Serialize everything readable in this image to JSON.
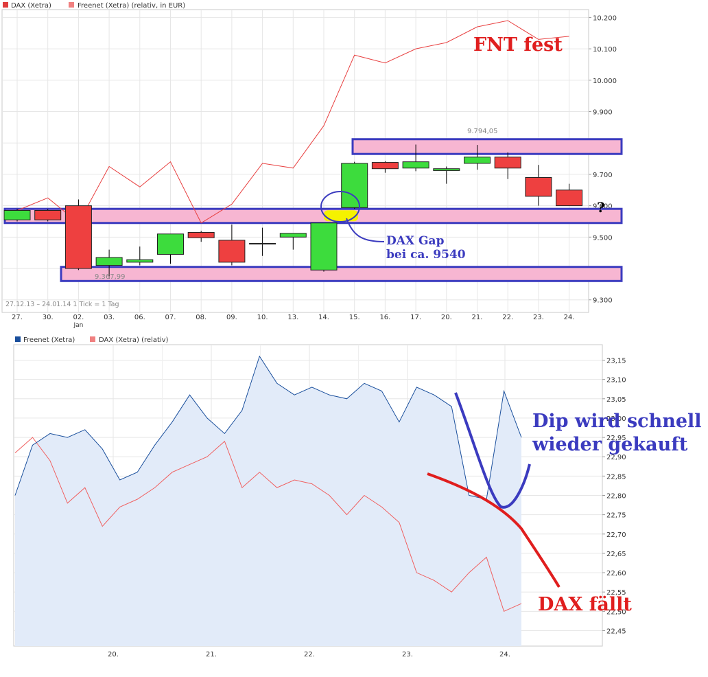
{
  "top_chart": {
    "legend": [
      {
        "label": "DAX (Xetra)",
        "color": "#e03c3c"
      },
      {
        "label": "Freenet (Xetra) (relativ, in EUR)",
        "color": "#f08080"
      }
    ],
    "period_label": "27.12.13 – 24.01.14   1 Tick = 1 Tag",
    "low_label": "9.367,99",
    "high_label": "9.794,05",
    "annotations": {
      "fnt_fest": "FNT fest",
      "gap_line1": "DAX Gap",
      "gap_line2": "bei ca. 9540",
      "question": "?"
    },
    "colors": {
      "up": "#3ddc3d",
      "down": "#ee4040",
      "band_fill": "#f7b6d2",
      "band_stroke": "#3b3bbf",
      "gap_fill": "#f5f200",
      "freenet_line": "#e84040"
    }
  },
  "bottom_chart": {
    "legend": [
      {
        "label": "Freenet (Xetra)",
        "color": "#1a4f9c"
      },
      {
        "label": "DAX (Xetra) (relativ)",
        "color": "#f08080"
      }
    ],
    "annotations": {
      "dip_line1": "Dip wird schnell",
      "dip_line2": "wieder gekauft",
      "dax_faellt": "DAX fällt"
    },
    "colors": {
      "freenet_line": "#1a4f9c",
      "freenet_fill": "#e2ebf9",
      "dax_line": "#f06060",
      "dip_curve": "#3b3bbf",
      "dax_curve": "#e01e1e"
    }
  },
  "chart_data": [
    {
      "type": "candlestick",
      "title": "",
      "x_labels": [
        "27.",
        "30.",
        "02.",
        "03.",
        "06.",
        "07.",
        "08.",
        "09.",
        "10.",
        "13.",
        "14.",
        "15.",
        "16.",
        "17.",
        "20.",
        "21.",
        "22.",
        "23.",
        "24."
      ],
      "x_sublabel": {
        "index": 2,
        "text": "Jan"
      },
      "y_ticks": [
        "10.200",
        "10.100",
        "10.000",
        "9.900",
        "9.800",
        "9.700",
        "9.600",
        "9.500",
        "9.400",
        "9.300"
      ],
      "ylim": [
        9260,
        10225
      ],
      "grid": true,
      "series": [
        {
          "name": "DAX (Xetra)",
          "ohlc": [
            [
              9555,
              9590,
              9550,
              9585
            ],
            [
              9585,
              9590,
              9550,
              9555
            ],
            [
              9600,
              9620,
              9395,
              9400
            ],
            [
              9410,
              9460,
              9368,
              9435
            ],
            [
              9420,
              9470,
              9410,
              9428
            ],
            [
              9445,
              9510,
              9415,
              9510
            ],
            [
              9515,
              9520,
              9485,
              9498
            ],
            [
              9490,
              9540,
              9410,
              9420
            ],
            [
              9480,
              9530,
              9440,
              9480
            ],
            [
              9500,
              9510,
              9460,
              9512
            ],
            [
              9395,
              9545,
              9390,
              9545
            ],
            [
              9594,
              9740,
              9590,
              9735
            ],
            [
              9738,
              9742,
              9705,
              9718
            ],
            [
              9720,
              9795,
              9710,
              9740
            ],
            [
              9712,
              9725,
              9670,
              9718
            ],
            [
              9735,
              9794.05,
              9715,
              9755
            ],
            [
              9755,
              9770,
              9685,
              9720
            ],
            [
              9690,
              9730,
              9600,
              9630
            ],
            [
              9650,
              9670,
              9600,
              9600
            ]
          ]
        },
        {
          "name": "Freenet (Xetra) (relativ, in EUR)",
          "values": [
            9585,
            9625,
            9545,
            9725,
            9660,
            9740,
            9545,
            9605,
            9735,
            9720,
            9855,
            10080,
            10055,
            10100,
            10120,
            10170,
            10190,
            10130,
            10140
          ]
        }
      ],
      "bands": [
        [
          9765,
          9812
        ],
        [
          9545,
          9590
        ],
        [
          9360,
          9405
        ]
      ],
      "gap_marker": 9568
    },
    {
      "type": "line",
      "title": "",
      "x_labels": [
        "20.",
        "21.",
        "22.",
        "23.",
        "24."
      ],
      "y_ticks": [
        "23,15",
        "23,10",
        "23,05",
        "23,00",
        "22,95",
        "22,90",
        "22,85",
        "22,80",
        "22,75",
        "22,70",
        "22,65",
        "22,60",
        "22,55",
        "22,50",
        "22,45"
      ],
      "ylim": [
        22.41,
        23.19
      ],
      "grid": true,
      "series": [
        {
          "name": "Freenet (Xetra)",
          "values": [
            22.8,
            22.93,
            22.96,
            22.95,
            22.97,
            22.92,
            22.84,
            22.86,
            22.93,
            22.99,
            23.06,
            23.0,
            22.96,
            23.02,
            23.16,
            23.09,
            23.06,
            23.08,
            23.06,
            23.05,
            23.09,
            23.07,
            22.99,
            23.08,
            23.06,
            23.03,
            22.8,
            22.79,
            23.07,
            22.95
          ]
        },
        {
          "name": "DAX (Xetra) (relativ)",
          "values": [
            22.91,
            22.95,
            22.89,
            22.78,
            22.82,
            22.72,
            22.77,
            22.79,
            22.82,
            22.86,
            22.88,
            22.9,
            22.94,
            22.82,
            22.86,
            22.82,
            22.84,
            22.83,
            22.8,
            22.75,
            22.8,
            22.77,
            22.73,
            22.6,
            22.58,
            22.55,
            22.6,
            22.64,
            22.5,
            22.52
          ]
        }
      ]
    }
  ]
}
